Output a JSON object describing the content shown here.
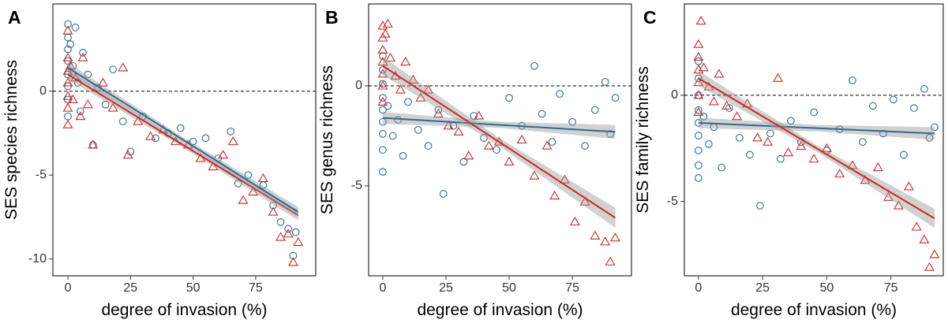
{
  "chart_data": [
    {
      "type": "scatter",
      "panel_label": "A",
      "y_label": "SES species richness",
      "x_label": "degree of invasion (%)",
      "xlim": [
        -6,
        99
      ],
      "ylim": [
        -11,
        5.2
      ],
      "xticks": [
        0,
        25,
        50,
        75
      ],
      "yticks": [
        -10,
        -5,
        0
      ],
      "reference_line": 0,
      "series": [
        {
          "color": "#2e6a94",
          "marker": "circle",
          "x": [
            0,
            0,
            0,
            0,
            0,
            0,
            0,
            0,
            1,
            2,
            3,
            4,
            5,
            6,
            8,
            10,
            12,
            15,
            18,
            22,
            25,
            30,
            35,
            40,
            45,
            50,
            55,
            60,
            65,
            68,
            72,
            78,
            82,
            85,
            88,
            90,
            91
          ],
          "values": [
            4.0,
            3.2,
            2.5,
            1.8,
            1.0,
            0.3,
            -0.5,
            -1.5,
            2.8,
            1.5,
            3.8,
            0.5,
            -1.2,
            2.3,
            1.0,
            -3.2,
            0.2,
            -0.8,
            1.3,
            -1.8,
            -3.6,
            -1.5,
            -2.8,
            -2.5,
            -2.2,
            -3.0,
            -2.8,
            -4.0,
            -2.4,
            -5.5,
            -5.0,
            -5.6,
            -6.8,
            -7.8,
            -8.2,
            -9.8,
            -8.4
          ]
        },
        {
          "color": "#cc2a24",
          "marker": "triangle",
          "x": [
            0,
            0,
            0,
            0,
            0,
            0,
            0,
            1,
            2,
            3,
            5,
            6,
            8,
            10,
            14,
            18,
            22,
            24,
            28,
            33,
            38,
            43,
            48,
            53,
            58,
            62,
            66,
            70,
            74,
            78,
            82,
            85,
            88,
            90,
            92
          ],
          "values": [
            3.6,
            2.0,
            1.2,
            0.5,
            -0.3,
            -1.0,
            -2.0,
            1.5,
            -0.5,
            0.8,
            -1.5,
            2.0,
            -0.8,
            -3.2,
            0.5,
            -1.0,
            1.4,
            -3.8,
            -1.8,
            -2.7,
            -2.3,
            -3.0,
            -3.2,
            -4.0,
            -4.5,
            -3.8,
            -3.0,
            -6.5,
            -6.0,
            -5.2,
            -7.2,
            -8.7,
            -8.5,
            -10.2,
            -9.0
          ]
        }
      ],
      "fits": [
        {
          "color": "#cc2a24",
          "x": [
            0,
            46,
            92
          ],
          "values": [
            1.0,
            -3.2,
            -7.4
          ],
          "lower": [
            0.7,
            -3.35,
            -7.7
          ],
          "upper": [
            1.3,
            -3.05,
            -7.1
          ]
        },
        {
          "color": "#2e6a94",
          "x": [
            0,
            46,
            92
          ],
          "values": [
            1.4,
            -2.9,
            -7.2
          ],
          "lower": [
            1.1,
            -3.05,
            -7.5
          ],
          "upper": [
            1.7,
            -2.75,
            -6.9
          ]
        }
      ]
    },
    {
      "type": "scatter",
      "panel_label": "B",
      "y_label": "SES genus richness",
      "x_label": "degree of invasion (%)",
      "xlim": [
        -5.6,
        98.4
      ],
      "ylim": [
        -9.5,
        4.1
      ],
      "xticks": [
        0,
        25,
        50,
        75
      ],
      "yticks": [
        -5,
        0
      ],
      "reference_line": 0,
      "series": [
        {
          "color": "#2e6a94",
          "marker": "circle",
          "x": [
            0,
            0,
            0,
            0,
            0,
            0,
            0,
            0,
            0,
            2,
            4,
            6,
            8,
            10,
            14,
            18,
            22,
            24,
            28,
            32,
            36,
            40,
            45,
            50,
            55,
            60,
            63,
            67,
            70,
            75,
            80,
            84,
            88,
            90,
            92
          ],
          "values": [
            1.5,
            0.8,
            0.1,
            -0.6,
            -1.2,
            -1.8,
            -2.4,
            -3.2,
            -4.3,
            -1.0,
            -2.5,
            -1.7,
            -3.5,
            -0.8,
            -2.2,
            -3.0,
            -1.2,
            -5.4,
            -2.0,
            -3.8,
            -1.5,
            -2.6,
            -3.2,
            -0.6,
            -2.0,
            1.0,
            -1.4,
            -2.8,
            -0.4,
            -1.8,
            -3.0,
            -1.2,
            0.2,
            -2.4,
            -0.6
          ]
        },
        {
          "color": "#cc2a24",
          "marker": "triangle",
          "x": [
            0,
            0,
            0,
            0,
            0,
            0,
            0,
            1,
            2,
            3,
            5,
            7,
            9,
            12,
            15,
            18,
            22,
            26,
            30,
            34,
            38,
            42,
            46,
            50,
            55,
            60,
            65,
            68,
            72,
            76,
            80,
            84,
            88,
            90,
            92
          ],
          "values": [
            3.0,
            2.4,
            1.8,
            1.2,
            0.6,
            0,
            -0.8,
            2.6,
            3.1,
            1.4,
            0.5,
            -0.2,
            1.2,
            0.3,
            -0.6,
            -0.2,
            -1.4,
            -2.0,
            -2.3,
            -3.5,
            -1.5,
            -3.0,
            -2.8,
            -3.8,
            -2.7,
            -4.5,
            -3.0,
            -5.5,
            -4.7,
            -6.8,
            -5.8,
            -7.5,
            -7.8,
            -8.8,
            -7.6
          ]
        }
      ],
      "fits": [
        {
          "color": "#2e6a94",
          "x": [
            0,
            46,
            92
          ],
          "values": [
            -1.6,
            -1.95,
            -2.3
          ],
          "lower": [
            -1.9,
            -2.1,
            -2.65
          ],
          "upper": [
            -1.3,
            -1.8,
            -1.95
          ]
        },
        {
          "color": "#cc2a24",
          "x": [
            0,
            46,
            92
          ],
          "values": [
            1.0,
            -2.8,
            -6.6
          ],
          "lower": [
            0.55,
            -3.0,
            -7.1
          ],
          "upper": [
            1.45,
            -2.6,
            -6.1
          ]
        }
      ]
    },
    {
      "type": "scatter",
      "panel_label": "C",
      "y_label": "SES family richness",
      "x_label": "degree of invasion (%)",
      "xlim": [
        -5.5,
        95.4
      ],
      "ylim": [
        -8.5,
        4.3
      ],
      "xticks": [
        0,
        25,
        50,
        75
      ],
      "yticks": [
        -5,
        0
      ],
      "reference_line": 0,
      "series": [
        {
          "color": "#2e6a94",
          "marker": "circle",
          "x": [
            0,
            0,
            0,
            0,
            0,
            0,
            0,
            0,
            0,
            2,
            4,
            6,
            9,
            12,
            16,
            20,
            24,
            28,
            32,
            36,
            40,
            45,
            50,
            55,
            60,
            64,
            68,
            72,
            76,
            80,
            84,
            88,
            90,
            92
          ],
          "values": [
            1.6,
            0.8,
            0,
            -0.7,
            -1.3,
            -1.9,
            -2.6,
            -3.3,
            -3.9,
            -1.0,
            -2.3,
            -1.5,
            -3.4,
            -0.6,
            -2.0,
            -2.8,
            -5.2,
            -1.8,
            -3.0,
            -1.2,
            -2.2,
            -0.8,
            -2.6,
            -1.6,
            0.7,
            -2.2,
            -0.5,
            -1.8,
            -0.2,
            -2.8,
            -0.6,
            0.3,
            -2.0,
            -1.5
          ]
        },
        {
          "color": "#cc2a24",
          "marker": "triangle",
          "x": [
            0,
            0,
            0,
            0,
            0,
            0,
            1,
            2,
            4,
            6,
            8,
            11,
            15,
            19,
            23,
            27,
            31,
            35,
            40,
            45,
            50,
            55,
            60,
            65,
            70,
            74,
            78,
            82,
            85,
            88,
            90,
            92
          ],
          "values": [
            2.4,
            1.8,
            1.2,
            0.6,
            0,
            -0.8,
            3.5,
            1.3,
            0.4,
            -0.3,
            1.0,
            -0.5,
            -1.0,
            -0.4,
            -2.0,
            -2.2,
            0.8,
            -2.7,
            -2.4,
            -3.0,
            -2.5,
            -3.7,
            -3.3,
            -4.0,
            -3.4,
            -4.8,
            -5.2,
            -4.3,
            -6.2,
            -6.8,
            -8.1,
            -7.5
          ]
        }
      ],
      "fits": [
        {
          "color": "#2e6a94",
          "x": [
            0,
            46,
            92
          ],
          "values": [
            -1.3,
            -1.55,
            -1.8
          ],
          "lower": [
            -1.55,
            -1.7,
            -2.1
          ],
          "upper": [
            -1.05,
            -1.4,
            -1.5
          ]
        },
        {
          "color": "#cc2a24",
          "x": [
            0,
            46,
            92
          ],
          "values": [
            0.8,
            -2.5,
            -5.8
          ],
          "lower": [
            0.45,
            -2.65,
            -6.25
          ],
          "upper": [
            1.15,
            -2.35,
            -5.35
          ]
        }
      ]
    }
  ]
}
